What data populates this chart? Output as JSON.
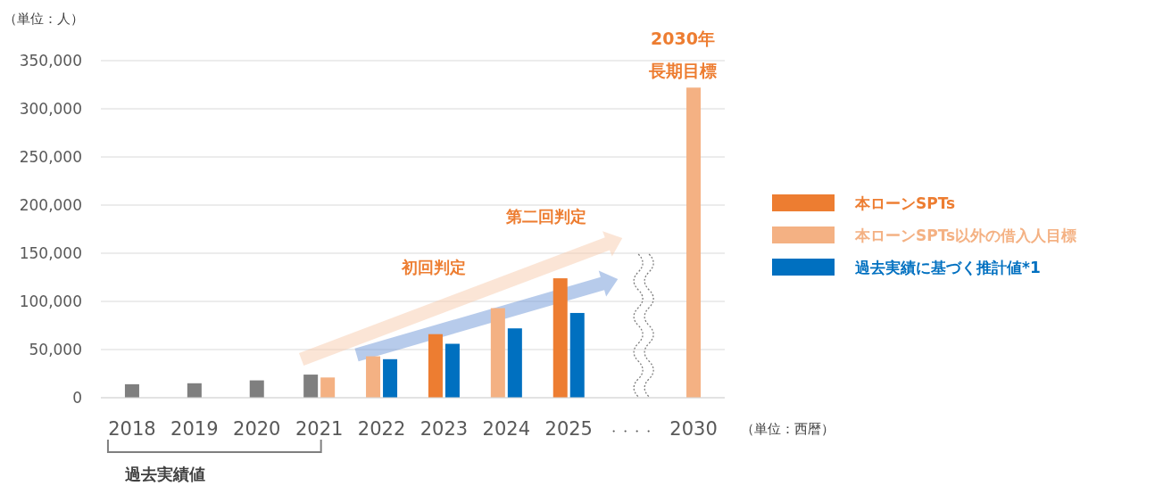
{
  "chart_data": {
    "type": "bar",
    "xlabel": "（単位：西暦）",
    "ylabel": "（単位：人）",
    "categories": [
      "2018",
      "2019",
      "2020",
      "2021",
      "2022",
      "2023",
      "2024",
      "2025",
      "・・・・",
      "2030"
    ],
    "series": [
      {
        "color": "#7f7f7f",
        "values": [
          14000,
          15000,
          18000,
          24000,
          null,
          null,
          null,
          null,
          null,
          null
        ]
      },
      {
        "name": "本ローンSPTs",
        "color": "#ed7d31",
        "values": [
          null,
          null,
          null,
          null,
          null,
          66000,
          null,
          124000,
          null,
          null
        ]
      },
      {
        "name": "本ローンSPTs以外の借入人目標",
        "color": "#f4b183",
        "values": [
          null,
          null,
          null,
          21000,
          43000,
          null,
          93000,
          null,
          null,
          322000
        ]
      },
      {
        "name": "過去実績に基づく推計値*1",
        "color": "#0070c0",
        "values": [
          null,
          null,
          null,
          null,
          40000,
          56000,
          72000,
          88000,
          null,
          null
        ]
      }
    ],
    "ylim": [
      0,
      350000
    ],
    "yticks": [
      {
        "value": 0,
        "label": "0"
      },
      {
        "value": 50000,
        "label": "50,000"
      },
      {
        "value": 100000,
        "label": "100,000"
      },
      {
        "value": 150000,
        "label": "150,000"
      },
      {
        "value": 200000,
        "label": "200,000"
      },
      {
        "value": 250000,
        "label": "250,000"
      },
      {
        "value": 300000,
        "label": "300,000"
      },
      {
        "value": 350000,
        "label": "350,000"
      }
    ],
    "grid": "y",
    "legend": "right",
    "annotations": [
      "過去実績値",
      "初回判定",
      "第二回判定",
      {
        "text": "2030年",
        "x": "2030",
        "y": 322000
      },
      {
        "text": "長期目標",
        "x": "2030",
        "y": 322000
      }
    ]
  }
}
